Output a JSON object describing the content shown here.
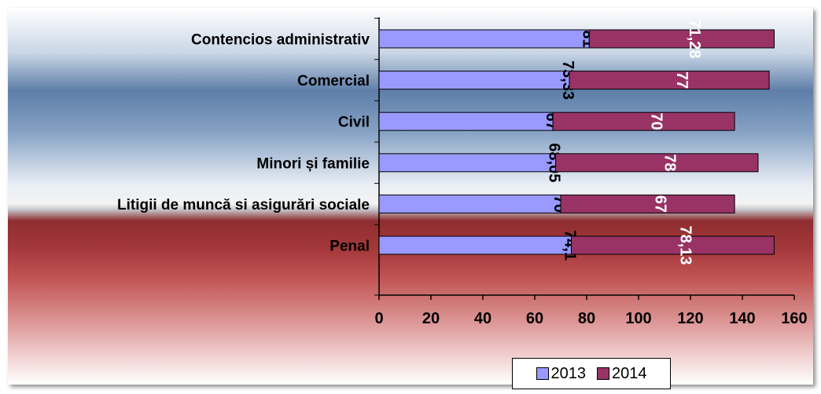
{
  "chart_data": {
    "type": "bar",
    "orientation": "horizontal",
    "stacked": true,
    "categories": [
      "Contencios administrativ",
      "Comercial",
      "Civil",
      "Minori și familie",
      "Litigii de muncă si asigurări sociale",
      "Penal"
    ],
    "series": [
      {
        "name": "2013",
        "values": [
          81,
          73.33,
          67,
          68.05,
          70,
          74.1
        ],
        "labels": [
          "81",
          "73,33",
          "67",
          "68,05",
          "70",
          "74,1"
        ],
        "color": "#9999ff",
        "label_color": "#000000"
      },
      {
        "name": "2014",
        "values": [
          71.28,
          77,
          70,
          78,
          67,
          78.13
        ],
        "labels": [
          "71,28",
          "77",
          "70",
          "78",
          "67",
          "78,13"
        ],
        "color": "#993366",
        "label_color": "#ffffff"
      }
    ],
    "xlim": [
      0,
      160
    ],
    "x_ticks": [
      "0",
      "20",
      "40",
      "60",
      "80",
      "100",
      "120",
      "140",
      "160"
    ],
    "grid": false,
    "legend_position": "bottom",
    "title": "",
    "xlabel": "",
    "ylabel": ""
  }
}
